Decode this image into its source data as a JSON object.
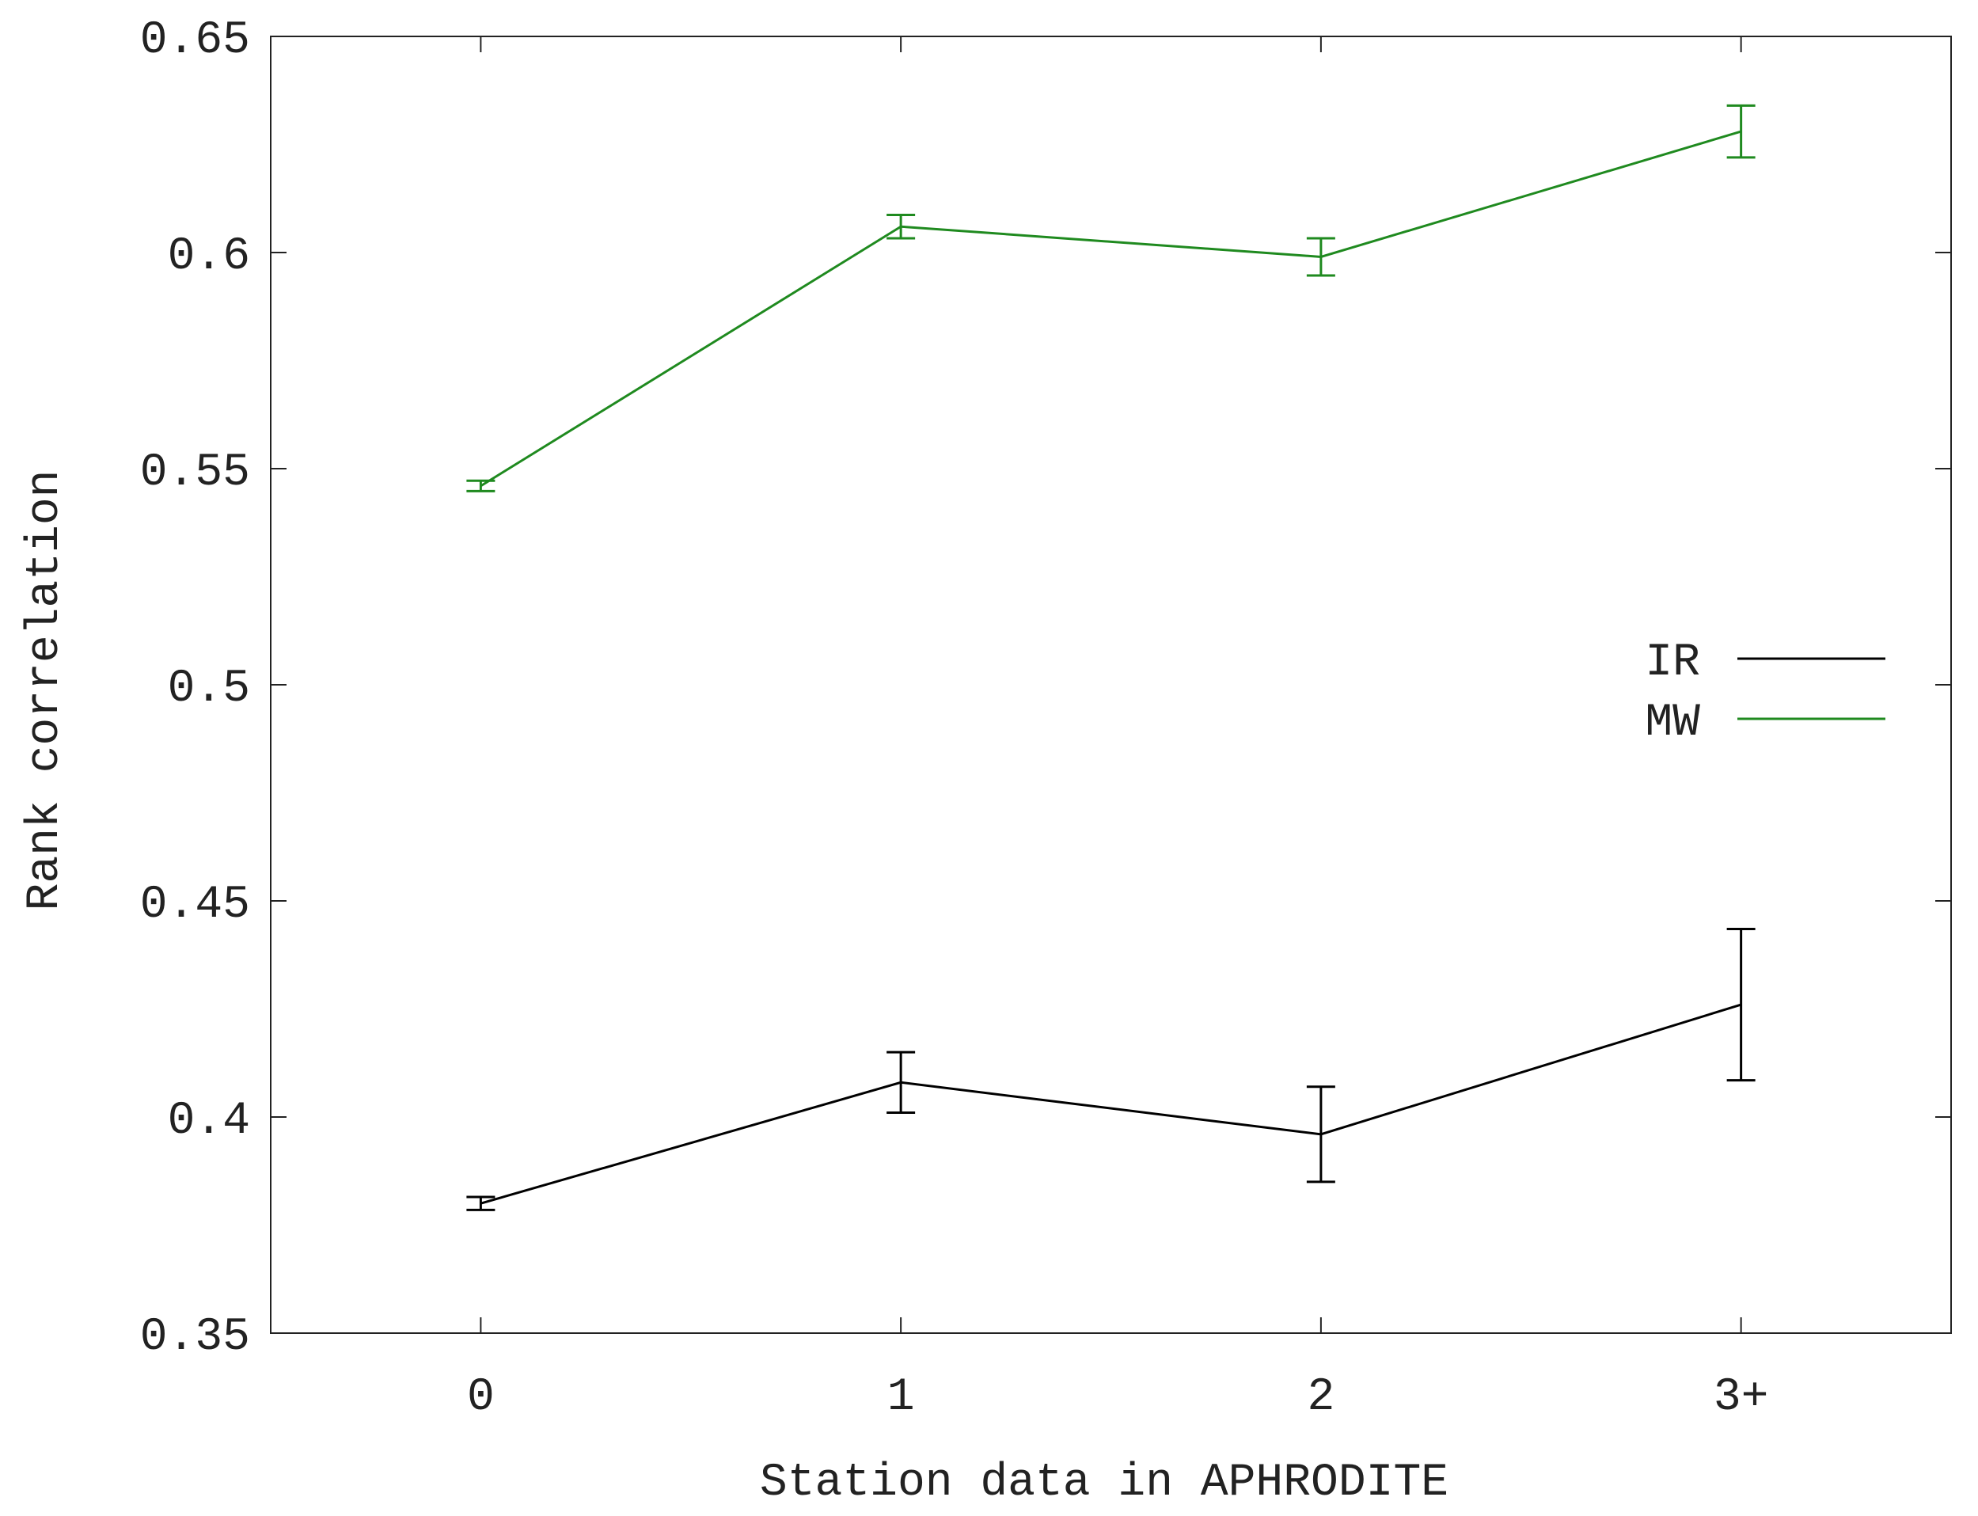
{
  "chart_data": {
    "type": "line",
    "xlabel": "Station data in APHRODITE",
    "ylabel": "Rank correlation",
    "categories": [
      "0",
      "1",
      "2",
      "3+"
    ],
    "xlim": [
      -0.5,
      3.5
    ],
    "ylim": [
      0.35,
      0.65
    ],
    "yticks": [
      0.35,
      0.4,
      0.45,
      0.5,
      0.55,
      0.6,
      0.65
    ],
    "ytick_labels": [
      "0.35",
      "0.4",
      "0.45",
      "0.5",
      "0.55",
      "0.6",
      "0.65"
    ],
    "grid": false,
    "legend_position": "right",
    "series": [
      {
        "name": "IR",
        "color": "#000000",
        "values": [
          0.38,
          0.408,
          0.396,
          0.426
        ],
        "errors": [
          0.0015,
          0.007,
          0.011,
          0.0175
        ]
      },
      {
        "name": "MW",
        "color": "#1f8a1f",
        "values": [
          0.546,
          0.606,
          0.599,
          0.628
        ],
        "errors": [
          0.0012,
          0.0027,
          0.0043,
          0.006
        ]
      }
    ]
  }
}
